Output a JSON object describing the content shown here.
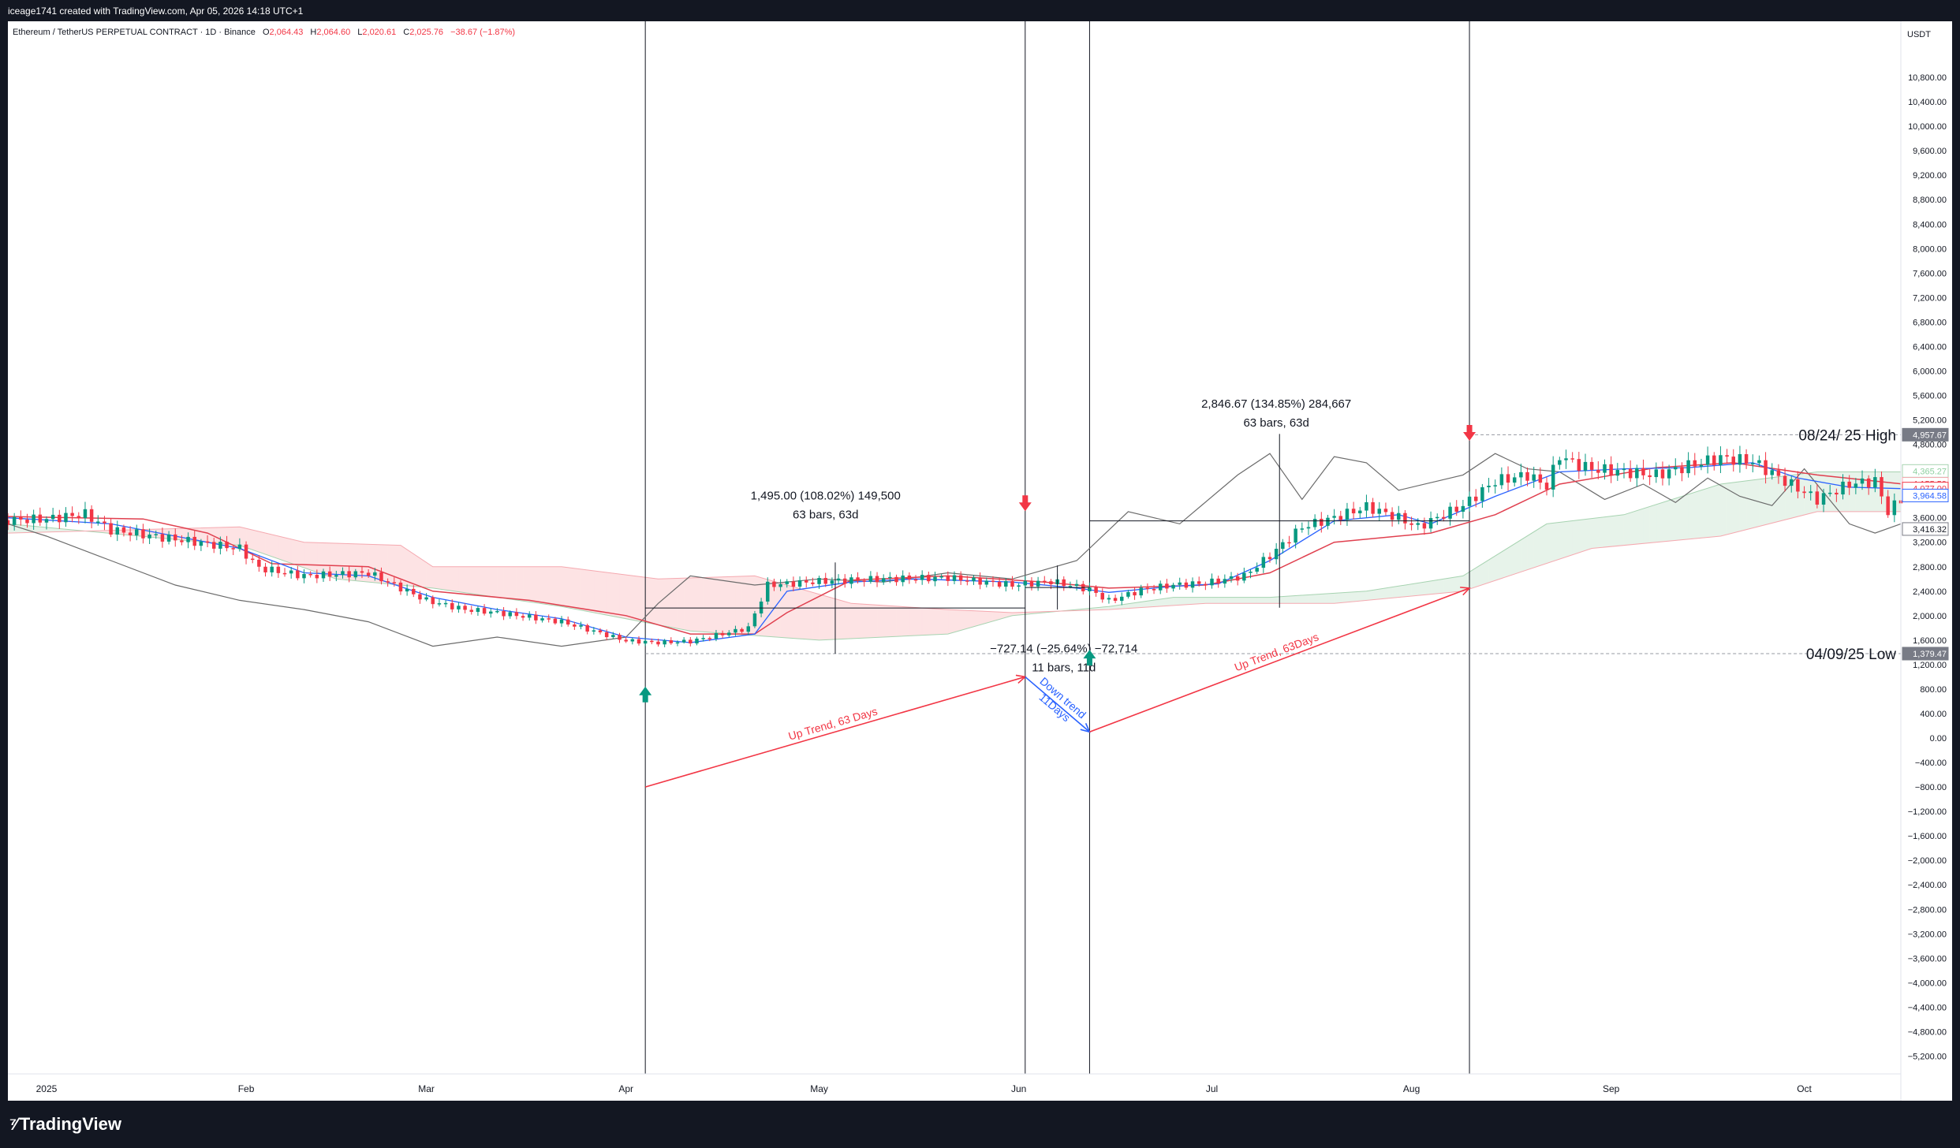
{
  "header": {
    "attribution": "iceage1741 created with TradingView.com, Apr 05, 2026 14:18 UTC+1"
  },
  "legend": {
    "symbol": "Ethereum / TetherUS PERPETUAL CONTRACT · 1D · Binance",
    "open_label": "O",
    "open": "2,064.43",
    "high_label": "H",
    "high": "2,064.60",
    "low_label": "L",
    "low": "2,020.61",
    "close_label": "C",
    "close": "2,025.76",
    "change": "−38.67 (−1.87%)"
  },
  "footer": {
    "brand": "TradingView"
  },
  "colors": {
    "up": "#089981",
    "down": "#f23645",
    "kijun": "#e0404f",
    "tenkan": "#2962ff",
    "lagging": "#6b6b6b",
    "cloud_bull": "#e7f3ea",
    "cloud_bear": "#fde3e4",
    "arrow_up_trend": "#f23645",
    "arrow_down_trend": "#2962ff"
  },
  "chart_data": {
    "type": "candlestick",
    "currency": "USDT",
    "interval": "1D",
    "y_axis": {
      "range": [
        -5400,
        11200
      ],
      "ticks": [
        "10,800.00",
        "10,400.00",
        "10,000.00",
        "9,600.00",
        "9,200.00",
        "8,800.00",
        "8,400.00",
        "8,000.00",
        "7,600.00",
        "7,200.00",
        "6,800.00",
        "6,400.00",
        "6,000.00",
        "5,600.00",
        "5,200.00",
        "4,800.00",
        "3,600.00",
        "3,200.00",
        "2,800.00",
        "2,400.00",
        "2,000.00",
        "1,600.00",
        "1,200.00",
        "800.00",
        "400.00",
        "0.00",
        "−400.00",
        "−800.00",
        "−1,200.00",
        "−1,600.00",
        "−2,000.00",
        "−2,400.00",
        "−2,800.00",
        "−3,200.00",
        "−3,600.00",
        "−4,000.00",
        "−4,400.00",
        "−4,800.00",
        "−5,200.00"
      ],
      "tick_values": [
        10800,
        10400,
        10000,
        9600,
        9200,
        8800,
        8400,
        8000,
        7600,
        7200,
        6800,
        6400,
        6000,
        5600,
        5200,
        4800,
        3600,
        3200,
        2800,
        2400,
        2000,
        1600,
        1200,
        800,
        400,
        0,
        -400,
        -800,
        -1200,
        -1600,
        -2000,
        -2400,
        -2800,
        -3200,
        -3600,
        -4000,
        -4400,
        -4800,
        -5200
      ],
      "price_tags": [
        {
          "label": "4,957.67",
          "value": 4957.67,
          "style": "dark"
        },
        {
          "label": "4,365.27",
          "value": 4365.27,
          "style": "green"
        },
        {
          "label": "4,155.59",
          "value": 4155.59,
          "style": "red"
        },
        {
          "label": "4,077.00",
          "value": 4077.0,
          "style": "redfill"
        },
        {
          "label": "3,964.58",
          "value": 3964.58,
          "style": "blue"
        },
        {
          "label": "3,416.32",
          "value": 3416.32,
          "style": "gray"
        },
        {
          "label": "1,379.47",
          "value": 1379.47,
          "style": "dark"
        }
      ]
    },
    "x_axis": {
      "ticks": [
        {
          "label": "2025",
          "day": 0
        },
        {
          "label": "Feb",
          "day": 31
        },
        {
          "label": "Mar",
          "day": 59
        },
        {
          "label": "Apr",
          "day": 90
        },
        {
          "label": "May",
          "day": 120
        },
        {
          "label": "Jun",
          "day": 151
        },
        {
          "label": "Jul",
          "day": 181
        },
        {
          "label": "Aug",
          "day": 212
        },
        {
          "label": "Sep",
          "day": 243
        },
        {
          "label": "Oct",
          "day": 273
        }
      ],
      "day_range": [
        -6,
        288
      ]
    },
    "series_close": [
      [
        -6,
        3560
      ],
      [
        0,
        3580
      ],
      [
        6,
        3660
      ],
      [
        10,
        3400
      ],
      [
        20,
        3250
      ],
      [
        30,
        3100
      ],
      [
        33,
        2780
      ],
      [
        40,
        2650
      ],
      [
        50,
        2700
      ],
      [
        59,
        2250
      ],
      [
        65,
        2100
      ],
      [
        70,
        2050
      ],
      [
        80,
        1900
      ],
      [
        90,
        1590
      ],
      [
        95,
        1560
      ],
      [
        100,
        1580
      ],
      [
        109,
        1800
      ],
      [
        112,
        2500
      ],
      [
        120,
        2560
      ],
      [
        130,
        2600
      ],
      [
        140,
        2620
      ],
      [
        150,
        2500
      ],
      [
        156,
        2560
      ],
      [
        162,
        2430
      ],
      [
        165,
        2240
      ],
      [
        170,
        2420
      ],
      [
        175,
        2500
      ],
      [
        180,
        2530
      ],
      [
        186,
        2650
      ],
      [
        190,
        2980
      ],
      [
        195,
        3450
      ],
      [
        200,
        3600
      ],
      [
        205,
        3780
      ],
      [
        210,
        3600
      ],
      [
        213,
        3450
      ],
      [
        220,
        3800
      ],
      [
        225,
        4200
      ],
      [
        230,
        4300
      ],
      [
        233,
        4120
      ],
      [
        235,
        4620
      ],
      [
        237,
        4500
      ],
      [
        240,
        4400
      ],
      [
        245,
        4350
      ],
      [
        250,
        4300
      ],
      [
        255,
        4450
      ],
      [
        260,
        4580
      ],
      [
        265,
        4520
      ],
      [
        270,
        4200
      ],
      [
        275,
        3900
      ],
      [
        280,
        4150
      ],
      [
        284,
        4200
      ],
      [
        286,
        3700
      ],
      [
        288,
        3900
      ]
    ],
    "tenkan": [
      [
        -6,
        3600
      ],
      [
        10,
        3500
      ],
      [
        20,
        3300
      ],
      [
        30,
        3100
      ],
      [
        40,
        2700
      ],
      [
        50,
        2650
      ],
      [
        60,
        2300
      ],
      [
        70,
        2100
      ],
      [
        80,
        1950
      ],
      [
        90,
        1650
      ],
      [
        100,
        1560
      ],
      [
        110,
        1700
      ],
      [
        115,
        2400
      ],
      [
        125,
        2550
      ],
      [
        135,
        2600
      ],
      [
        150,
        2550
      ],
      [
        160,
        2450
      ],
      [
        165,
        2380
      ],
      [
        175,
        2480
      ],
      [
        182,
        2520
      ],
      [
        190,
        2900
      ],
      [
        200,
        3550
      ],
      [
        210,
        3650
      ],
      [
        215,
        3500
      ],
      [
        225,
        3950
      ],
      [
        235,
        4350
      ],
      [
        245,
        4400
      ],
      [
        255,
        4420
      ],
      [
        265,
        4500
      ],
      [
        272,
        4250
      ],
      [
        280,
        4100
      ],
      [
        288,
        4077
      ]
    ],
    "kijun": [
      [
        -6,
        3620
      ],
      [
        15,
        3580
      ],
      [
        25,
        3350
      ],
      [
        35,
        2850
      ],
      [
        50,
        2800
      ],
      [
        60,
        2400
      ],
      [
        75,
        2250
      ],
      [
        90,
        2000
      ],
      [
        100,
        1700
      ],
      [
        110,
        1700
      ],
      [
        115,
        2050
      ],
      [
        125,
        2580
      ],
      [
        140,
        2650
      ],
      [
        155,
        2550
      ],
      [
        165,
        2450
      ],
      [
        180,
        2500
      ],
      [
        190,
        2700
      ],
      [
        200,
        3200
      ],
      [
        215,
        3350
      ],
      [
        225,
        3650
      ],
      [
        235,
        4150
      ],
      [
        250,
        4420
      ],
      [
        262,
        4500
      ],
      [
        275,
        4300
      ],
      [
        288,
        4155
      ]
    ],
    "lagging_span": [
      [
        -6,
        3500
      ],
      [
        0,
        3300
      ],
      [
        10,
        2900
      ],
      [
        20,
        2500
      ],
      [
        30,
        2250
      ],
      [
        40,
        2100
      ],
      [
        50,
        1900
      ],
      [
        60,
        1500
      ],
      [
        70,
        1650
      ],
      [
        80,
        1500
      ],
      [
        90,
        1650
      ],
      [
        95,
        2200
      ],
      [
        100,
        2650
      ],
      [
        110,
        2500
      ],
      [
        120,
        2600
      ],
      [
        130,
        2550
      ],
      [
        140,
        2700
      ],
      [
        150,
        2600
      ],
      [
        160,
        2900
      ],
      [
        168,
        3700
      ],
      [
        176,
        3500
      ],
      [
        185,
        4300
      ],
      [
        190,
        4650
      ],
      [
        195,
        3900
      ],
      [
        200,
        4600
      ],
      [
        205,
        4500
      ],
      [
        210,
        4050
      ],
      [
        220,
        4300
      ],
      [
        225,
        4650
      ],
      [
        230,
        4400
      ],
      [
        235,
        4350
      ],
      [
        242,
        3900
      ],
      [
        248,
        4150
      ],
      [
        253,
        3850
      ],
      [
        258,
        4250
      ],
      [
        263,
        3950
      ],
      [
        268,
        3800
      ],
      [
        273,
        4400
      ],
      [
        280,
        3500
      ],
      [
        284,
        3350
      ],
      [
        288,
        3500
      ]
    ],
    "cloud": {
      "a": [
        [
          -6,
          3500
        ],
        [
          30,
          3150
        ],
        [
          45,
          2600
        ],
        [
          60,
          2450
        ],
        [
          80,
          2150
        ],
        [
          100,
          1750
        ],
        [
          120,
          1600
        ],
        [
          140,
          1700
        ],
        [
          150,
          2000
        ],
        [
          165,
          2150
        ],
        [
          175,
          2300
        ],
        [
          190,
          2300
        ],
        [
          205,
          2400
        ],
        [
          220,
          2650
        ],
        [
          233,
          3500
        ],
        [
          245,
          3650
        ],
        [
          260,
          4150
        ],
        [
          275,
          4350
        ],
        [
          288,
          4350
        ]
      ],
      "b": [
        [
          -6,
          3350
        ],
        [
          30,
          3450
        ],
        [
          40,
          3200
        ],
        [
          55,
          3150
        ],
        [
          60,
          2800
        ],
        [
          80,
          2800
        ],
        [
          95,
          2600
        ],
        [
          110,
          2650
        ],
        [
          125,
          2200
        ],
        [
          140,
          2100
        ],
        [
          150,
          2050
        ],
        [
          165,
          2100
        ],
        [
          180,
          2200
        ],
        [
          200,
          2200
        ],
        [
          220,
          2400
        ],
        [
          240,
          3100
        ],
        [
          260,
          3300
        ],
        [
          275,
          3700
        ],
        [
          288,
          3700
        ]
      ]
    },
    "vertical_lines": [
      93,
      152,
      162,
      221
    ],
    "signals": [
      {
        "type": "up",
        "day": 93,
        "price": 700
      },
      {
        "type": "down",
        "day": 152,
        "price": 3850
      },
      {
        "type": "up",
        "day": 162,
        "price": 1300
      },
      {
        "type": "down",
        "day": 221,
        "price": 5000
      }
    ],
    "horizontal_levels": [
      {
        "label": "08/24/ 25 High",
        "price": 4957.67,
        "from_day": 221
      },
      {
        "label": "04/09/25 Low",
        "price": 1379.47,
        "from_day": 93
      }
    ],
    "measurements": [
      {
        "text1": "1,495.00 (108.02%) 149,500",
        "text2": "63 bars, 63d",
        "from_day": 93,
        "to_day": 152,
        "low": 1379,
        "high": 2870,
        "label_day": 121,
        "label_price": 3900
      },
      {
        "text1": "−727.14 (−25.64%) −72,714",
        "text2": "11 bars, 11d",
        "from_day": 152,
        "to_day": 162,
        "low": 2100,
        "high": 2820,
        "label_day": 158,
        "label_price": 1400
      },
      {
        "text1": "2,846.67 (134.85%) 284,667",
        "text2": "63 bars, 63d",
        "from_day": 162,
        "to_day": 221,
        "low": 2130,
        "high": 4970,
        "label_day": 191,
        "label_price": 5400
      }
    ],
    "trend_arrows": [
      {
        "label": "Up Trend, 63 Days",
        "from": [
          93,
          -800
        ],
        "to": [
          152,
          1000
        ],
        "color": "red"
      },
      {
        "label": "Down trend",
        "label2": "11Days",
        "from": [
          152,
          1000
        ],
        "to": [
          162,
          100
        ],
        "color": "blue"
      },
      {
        "label": "Up Trend, 63Days",
        "from": [
          162,
          100
        ],
        "to": [
          221,
          2450
        ],
        "color": "red"
      }
    ]
  }
}
